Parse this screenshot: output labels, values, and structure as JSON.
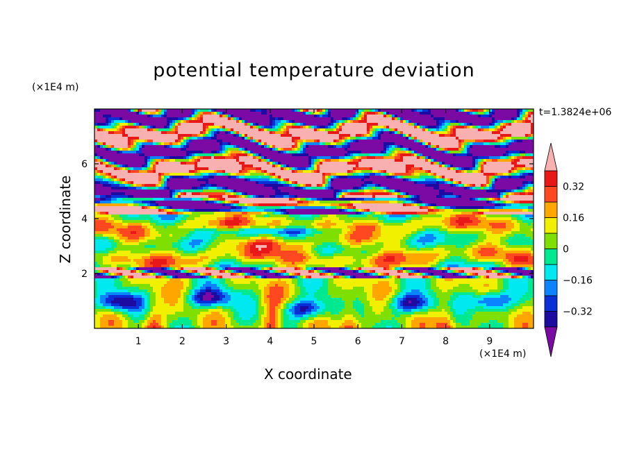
{
  "chart_data": {
    "type": "heatmap",
    "title": "potential temperature deviation",
    "xlabel": "X coordinate",
    "ylabel": "Z coordinate",
    "x_multiplier": "(×1E4 m)",
    "y_multiplier": "(×1E4 m)",
    "time_label": "t=1.3824e+06",
    "xlim": [
      0,
      10
    ],
    "ylim": [
      0,
      8
    ],
    "x_ticks": [
      1,
      2,
      3,
      4,
      5,
      6,
      7,
      8,
      9
    ],
    "y_ticks": [
      2,
      4,
      6
    ],
    "colorbar": {
      "levels": [
        -0.4,
        -0.32,
        -0.24,
        -0.16,
        -0.08,
        0,
        0.08,
        0.16,
        0.24,
        0.32,
        0.4
      ],
      "tick_labels": [
        "0.32",
        "0.16",
        "0",
        "−0.16",
        "−0.32"
      ],
      "tick_values": [
        0.32,
        0.16,
        0,
        -0.16,
        -0.32
      ],
      "colors": [
        "#7b0aa5",
        "#1d0aa0",
        "#0a2fd6",
        "#0a85ff",
        "#00e8f0",
        "#00e890",
        "#7fe000",
        "#f0f000",
        "#ffa600",
        "#ff4820",
        "#e81818",
        "#f8b0b0"
      ],
      "extend": "both"
    },
    "bands": [
      {
        "z_range": [
          7.4,
          8.0
        ],
        "pattern": "purple-pink mix"
      },
      {
        "z_range": [
          6.6,
          7.4
        ],
        "pattern": "mostly pink"
      },
      {
        "z_range": [
          5.8,
          6.6
        ],
        "pattern": "purple and pink"
      },
      {
        "z_range": [
          4.8,
          5.8
        ],
        "pattern": "pink with purple streaks"
      },
      {
        "z_range": [
          4.2,
          4.8
        ],
        "pattern": "purple and pink, red near top of warm layer"
      },
      {
        "z_range": [
          2.2,
          4.2
        ],
        "pattern": "green, cyan, yellow, orange"
      },
      {
        "z_range": [
          1.8,
          2.2
        ],
        "pattern": "purple/pink front"
      },
      {
        "z_range": [
          0.0,
          1.8
        ],
        "pattern": "green, cyan, blue eddies, orange plumes"
      }
    ]
  }
}
